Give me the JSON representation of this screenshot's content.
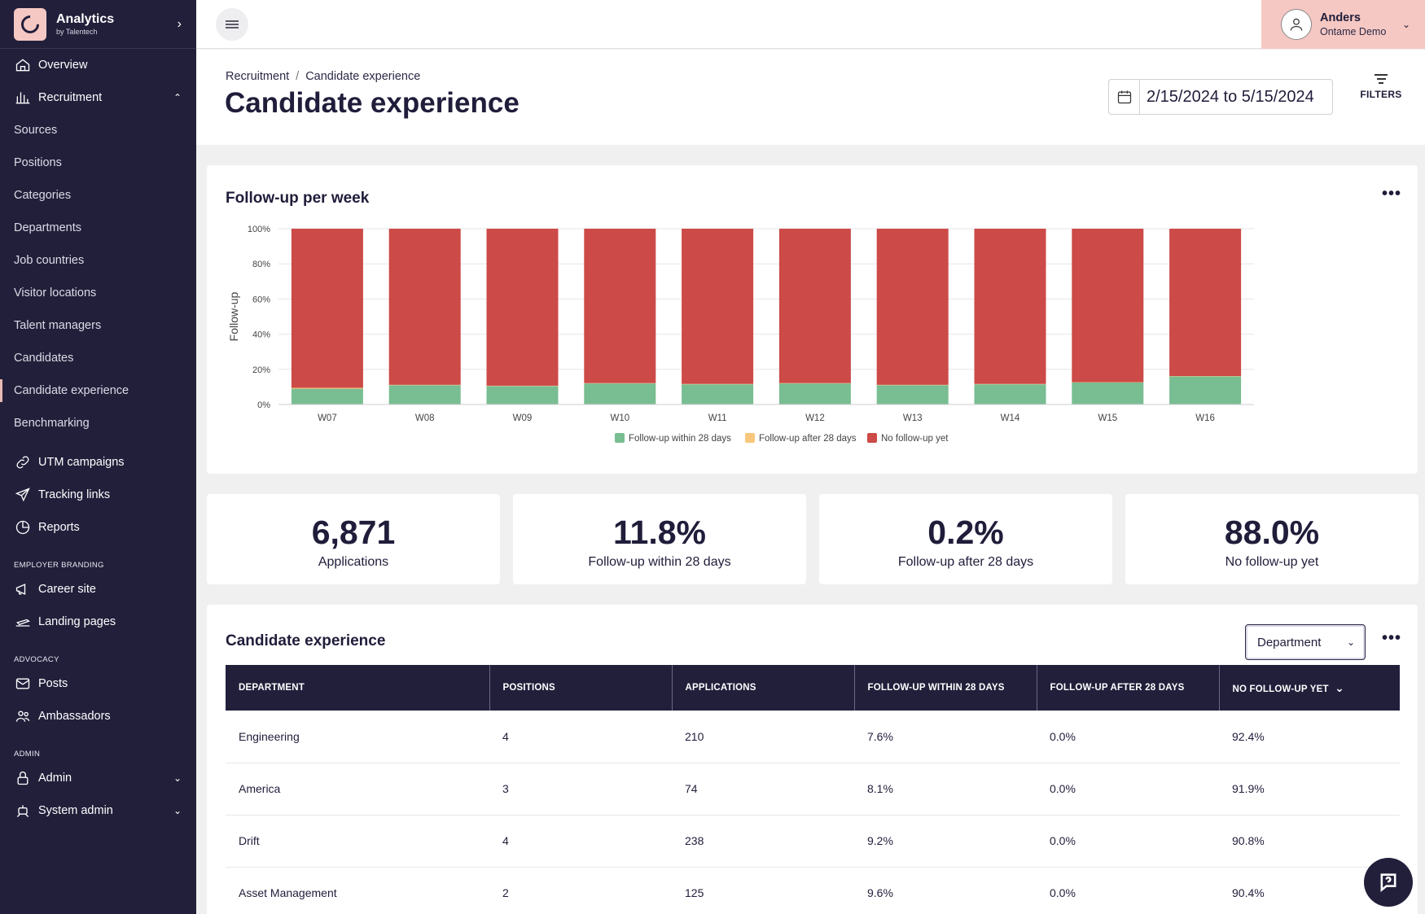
{
  "brand": {
    "title": "Analytics",
    "subtitle": "by Talentech"
  },
  "sidebar": {
    "top_items": [
      {
        "label": "Overview",
        "icon": "home-icon"
      },
      {
        "label": "Recruitment",
        "icon": "bar-chart-icon"
      }
    ],
    "recruitment_sub": [
      "Sources",
      "Positions",
      "Categories",
      "Departments",
      "Job countries",
      "Visitor locations",
      "Talent managers",
      "Candidates",
      "Candidate experience",
      "Benchmarking"
    ],
    "active_sub": "Candidate experience",
    "mid_items": [
      {
        "label": "UTM campaigns",
        "icon": "link-icon"
      },
      {
        "label": "Tracking links",
        "icon": "send-icon"
      },
      {
        "label": "Reports",
        "icon": "pie-chart-icon"
      }
    ],
    "employer_branding_label": "EMPLOYER BRANDING",
    "employer_items": [
      {
        "label": "Career site",
        "icon": "megaphone-icon"
      },
      {
        "label": "Landing pages",
        "icon": "plane-icon"
      }
    ],
    "advocacy_label": "ADVOCACY",
    "advocacy_items": [
      {
        "label": "Posts",
        "icon": "mail-icon"
      },
      {
        "label": "Ambassadors",
        "icon": "users-icon"
      }
    ],
    "admin_label": "ADMIN",
    "admin_items": [
      {
        "label": "Admin",
        "icon": "lock-icon"
      },
      {
        "label": "System admin",
        "icon": "robot-icon"
      }
    ]
  },
  "user": {
    "name": "Anders",
    "org": "Ontame Demo"
  },
  "header": {
    "breadcrumb_parent": "Recruitment",
    "breadcrumb_sep": "/",
    "breadcrumb_current": "Candidate experience",
    "title": "Candidate experience",
    "date_range": "2/15/2024 to 5/15/2024",
    "filters_label": "FILTERS"
  },
  "chart_card": {
    "title": "Follow-up per week",
    "menu": "•••"
  },
  "chart_data": {
    "type": "bar",
    "stacked": true,
    "categories": [
      "W07",
      "W08",
      "W09",
      "W10",
      "W11",
      "W12",
      "W13",
      "W14",
      "W15",
      "W16"
    ],
    "series": [
      {
        "name": "Follow-up within 28 days",
        "color": "#79bd92",
        "values": [
          9,
          11,
          10.5,
          12,
          11.5,
          12,
          11,
          11.5,
          12.5,
          16
        ]
      },
      {
        "name": "Follow-up after 28 days",
        "color": "#f9c77c",
        "values": [
          0.5,
          0.2,
          0.2,
          0.2,
          0.2,
          0.2,
          0.2,
          0.2,
          0.2,
          0.2
        ]
      },
      {
        "name": "No follow-up yet",
        "color": "#cc4a47",
        "values": [
          90.5,
          88.8,
          89.3,
          87.8,
          88.3,
          87.8,
          88.8,
          88.3,
          87.3,
          83.8
        ]
      }
    ],
    "ylabel": "Follow-up",
    "ylim": [
      0,
      100
    ],
    "yticks": [
      "0%",
      "20%",
      "40%",
      "60%",
      "80%",
      "100%"
    ],
    "grid": true,
    "legend": "bottom"
  },
  "kpis": [
    {
      "value": "6,871",
      "label": "Applications"
    },
    {
      "value": "11.8%",
      "label": "Follow-up within 28 days"
    },
    {
      "value": "0.2%",
      "label": "Follow-up after 28 days"
    },
    {
      "value": "88.0%",
      "label": "No follow-up yet"
    }
  ],
  "table_card": {
    "title": "Candidate experience",
    "select_value": "Department",
    "menu": "•••",
    "columns": [
      "DEPARTMENT",
      "POSITIONS",
      "APPLICATIONS",
      "FOLLOW-UP WITHIN 28 DAYS",
      "FOLLOW-UP AFTER 28 DAYS",
      "NO FOLLOW-UP YET"
    ],
    "rows": [
      [
        "Engineering",
        "4",
        "210",
        "7.6%",
        "0.0%",
        "92.4%"
      ],
      [
        "America",
        "3",
        "74",
        "8.1%",
        "0.0%",
        "91.9%"
      ],
      [
        "Drift",
        "4",
        "238",
        "9.2%",
        "0.0%",
        "90.8%"
      ],
      [
        "Asset Management",
        "2",
        "125",
        "9.6%",
        "0.0%",
        "90.4%"
      ]
    ]
  }
}
